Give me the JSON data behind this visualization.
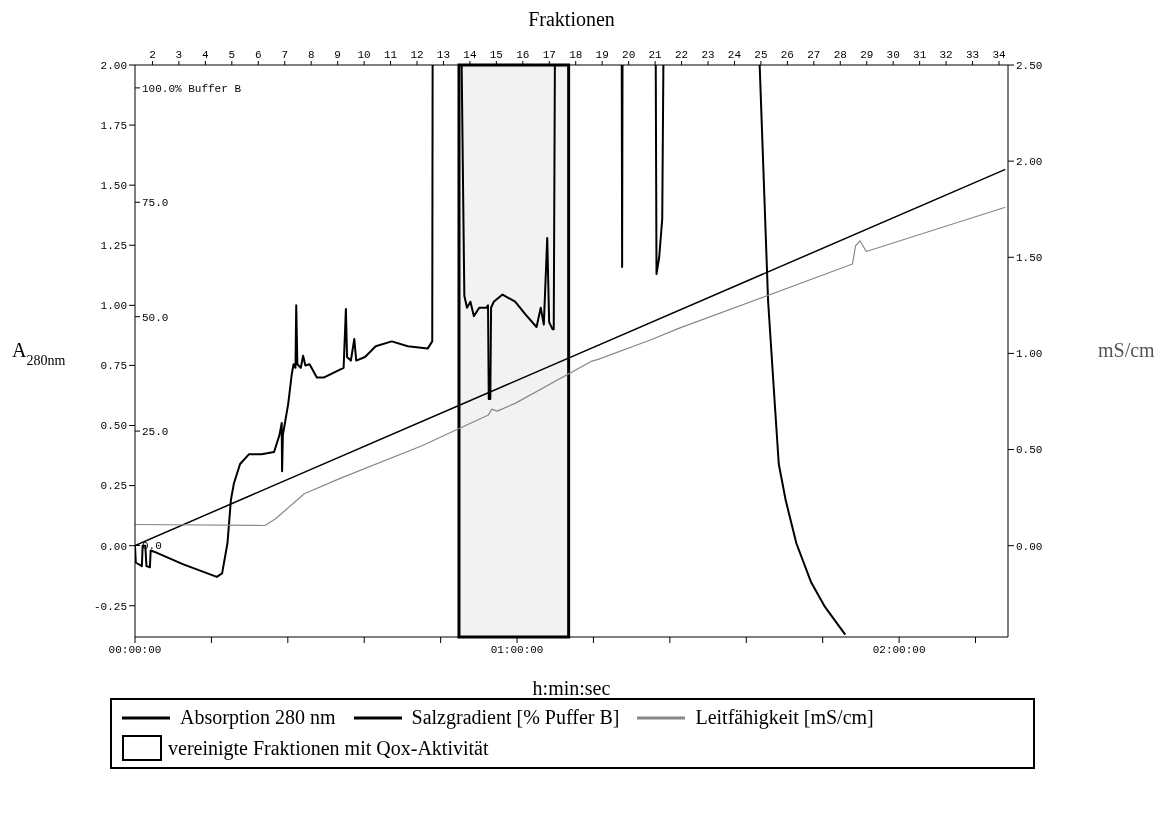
{
  "chart_data": {
    "type": "line",
    "x2label": "Fraktionen",
    "xlabel": "h:min:sec",
    "ylabel": "A$_{280nm}$",
    "y2label": "mS/cm",
    "xlim": [
      0,
      2.285
    ],
    "xticks": [
      {
        "value": 0,
        "label": "00:00:00"
      },
      {
        "value": 0.2,
        "label": null
      },
      {
        "value": 0.4,
        "label": null
      },
      {
        "value": 0.6,
        "label": null
      },
      {
        "value": 0.8,
        "label": null
      },
      {
        "value": 1,
        "label": "01:00:00"
      },
      {
        "value": 1.2,
        "label": null
      },
      {
        "value": 1.4,
        "label": null
      },
      {
        "value": 1.6,
        "label": null
      },
      {
        "value": 1.8,
        "label": null
      },
      {
        "value": 2,
        "label": "02:00:00"
      },
      {
        "value": 2.2,
        "label": null
      }
    ],
    "x2lim": [
      1.34,
      34.34
    ],
    "x2ticks": [
      2,
      3,
      4,
      5,
      6,
      7,
      8,
      9,
      10,
      11,
      12,
      13,
      14,
      15,
      16,
      17,
      18,
      19,
      20,
      21,
      22,
      23,
      24,
      25,
      26,
      27,
      28,
      29,
      30,
      31,
      32,
      33,
      34
    ],
    "ylim": [
      -0.38,
      2.0
    ],
    "yticks": [
      {
        "value": 2,
        "label": "2.00"
      },
      {
        "value": 1.75,
        "label": "1.75"
      },
      {
        "value": 1.5,
        "label": "1.50"
      },
      {
        "value": 1.25,
        "label": "1.25"
      },
      {
        "value": 1,
        "label": "1.00"
      },
      {
        "value": 0.75,
        "label": "0.75"
      },
      {
        "value": 0.5,
        "label": "0.50"
      },
      {
        "value": 0.25,
        "label": "0.25"
      },
      {
        "value": 0,
        "label": "0.00"
      },
      {
        "value": -0.25,
        "label": "-0.25"
      }
    ],
    "y2lim": [
      -0.475,
      2.5
    ],
    "y2ticks": [
      {
        "value": 2.5,
        "label": "2.50"
      },
      {
        "value": 2,
        "label": "2.00"
      },
      {
        "value": 1.5,
        "label": "1.50"
      },
      {
        "value": 1,
        "label": "1.00"
      },
      {
        "value": 0.5,
        "label": "0.50"
      },
      {
        "value": 0,
        "label": "0.00"
      }
    ],
    "y3lim": [
      -20,
      105
    ],
    "y3ticks": [
      {
        "value": 100,
        "label": "100.0% Buffer B"
      },
      {
        "value": 75,
        "label": "75.0"
      },
      {
        "value": 50,
        "label": "50.0"
      },
      {
        "value": 25,
        "label": "25.0"
      },
      {
        "value": 0,
        "label": "0.0"
      }
    ],
    "legend": "bottom",
    "bands": [
      {
        "axis": "x",
        "from": 0.848,
        "to": 1.135,
        "label": "vereinigte Fraktionen mit Qox-Aktivität",
        "color": "#000000"
      }
    ],
    "series": [
      {
        "name": "Absorption 280 nm",
        "color": "#000000",
        "x": [
          0,
          0.002,
          0.018,
          0.02,
          0.027,
          0.03,
          0.039,
          0.041,
          0.05,
          0.125,
          0.214,
          0.228,
          0.242,
          0.251,
          0.259,
          0.275,
          0.298,
          0.331,
          0.364,
          0.378,
          0.384,
          0.385,
          0.387,
          0.401,
          0.41,
          0.415,
          0.42,
          0.422,
          0.425,
          0.434,
          0.44,
          0.446,
          0.457,
          0.476,
          0.495,
          0.546,
          0.552,
          0.555,
          0.565,
          0.574,
          0.579,
          0.602,
          0.63,
          0.672,
          0.714,
          0.766,
          0.778,
          0.779,
          0.8,
          0.855,
          0.862,
          0.869,
          0.878,
          0.887,
          0.901,
          0.92,
          0.924,
          0.926,
          0.93,
          0.932,
          0.939,
          0.962,
          0.995,
          1.023,
          1.051,
          1.062,
          1.07,
          1.079,
          1.084,
          1.093,
          1.096,
          1.099,
          1.2,
          1.274,
          1.275,
          1.276,
          1.3,
          1.363,
          1.365,
          1.372,
          1.38,
          1.383,
          1.5,
          1.635,
          1.657,
          1.675,
          1.685,
          1.703,
          1.731,
          1.769,
          1.806,
          1.859
        ],
        "values": [
          0,
          -0.07,
          -0.085,
          0,
          0,
          -0.085,
          -0.09,
          -0.02,
          -0.025,
          -0.077,
          -0.13,
          -0.115,
          0.01,
          0.19,
          0.26,
          0.34,
          0.38,
          0.38,
          0.39,
          0.46,
          0.51,
          0.31,
          0.46,
          0.59,
          0.71,
          0.755,
          0.74,
          1.0,
          0.755,
          0.74,
          0.79,
          0.75,
          0.755,
          0.7,
          0.7,
          0.74,
          0.985,
          0.785,
          0.77,
          0.86,
          0.77,
          0.785,
          0.83,
          0.85,
          0.83,
          0.82,
          0.85,
          2.0,
          null,
          2.0,
          1.04,
          0.99,
          1.015,
          0.955,
          0.99,
          0.99,
          1.0,
          0.61,
          0.61,
          0.99,
          1.015,
          1.045,
          1.015,
          0.96,
          0.91,
          0.99,
          0.92,
          1.28,
          0.93,
          0.9,
          0.9,
          2.0,
          null,
          2.0,
          1.16,
          2.0,
          null,
          2.0,
          1.13,
          1.2,
          1.36,
          2.0,
          null,
          2.0,
          1.02,
          0.58,
          0.34,
          0.19,
          0.01,
          -0.15,
          -0.255,
          -0.37
        ]
      },
      {
        "name": "Salzgradient [% Puffer B]",
        "color": "#000000",
        "axis": "y3",
        "x": [
          0,
          2.278
        ],
        "values": [
          0,
          82.2
        ]
      },
      {
        "name": "Leitfähigkeit [mS/cm]",
        "color": "#888888",
        "axis": "y2",
        "x": [
          0,
          0.34,
          0.368,
          0.443,
          0.537,
          0.751,
          0.925,
          0.934,
          0.948,
          0.995,
          1.196,
          1.214,
          1.349,
          1.423,
          1.878,
          1.886,
          1.898,
          1.914,
          2.278
        ],
        "values": [
          0.11,
          0.105,
          0.14,
          0.27,
          0.35,
          0.52,
          0.68,
          0.71,
          0.7,
          0.74,
          0.96,
          0.97,
          1.07,
          1.13,
          1.465,
          1.56,
          1.585,
          1.53,
          1.76
        ]
      }
    ]
  }
}
